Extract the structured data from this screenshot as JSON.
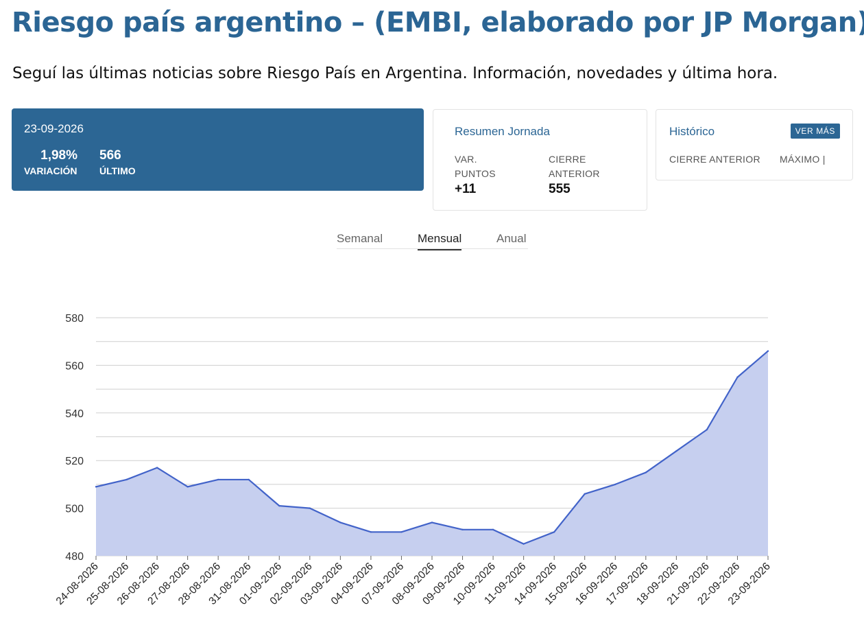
{
  "header": {
    "title": "Riesgo país argentino – (EMBI, elaborado por JP Morgan)",
    "subtitle": "Seguí las últimas noticias sobre Riesgo País en Argentina. Información, novedades y última hora."
  },
  "summary": {
    "date": "23-09-2026",
    "variation_value": "1,98%",
    "variation_label": "VARIACIÓN",
    "last_value": "566",
    "last_label": "ÚLTIMO"
  },
  "resumen": {
    "title": "Resumen Jornada",
    "var_label_1": "VAR.",
    "var_label_2": "PUNTOS",
    "var_value": "+11",
    "cierre_label_1": "CIERRE",
    "cierre_label_2": "ANTERIOR",
    "cierre_value": "555"
  },
  "historico": {
    "title": "Histórico",
    "button_label": "VER MÁS",
    "col1_label": "CIERRE ANTERIOR",
    "col2_label": "MÁXIMO |"
  },
  "tabs": [
    {
      "label": "Semanal",
      "active": false
    },
    {
      "label": "Mensual",
      "active": true
    },
    {
      "label": "Anual",
      "active": false
    }
  ],
  "colors": {
    "brand": "#2c6694",
    "line": "#4263c9",
    "area": "#c6cfef",
    "grid": "#cfcfcf"
  },
  "chart_data": {
    "type": "area",
    "x": [
      "24-08-2026",
      "25-08-2026",
      "26-08-2026",
      "27-08-2026",
      "28-08-2026",
      "31-08-2026",
      "01-09-2026",
      "02-09-2026",
      "03-09-2026",
      "04-09-2026",
      "07-09-2026",
      "08-09-2026",
      "09-09-2026",
      "10-09-2026",
      "11-09-2026",
      "14-09-2026",
      "15-09-2026",
      "16-09-2026",
      "17-09-2026",
      "18-09-2026",
      "21-09-2026",
      "22-09-2026",
      "23-09-2026"
    ],
    "values": [
      509,
      512,
      517,
      509,
      512,
      512,
      501,
      500,
      494,
      490,
      490,
      494,
      491,
      491,
      485,
      490,
      506,
      510,
      515,
      524,
      533,
      555,
      566
    ],
    "ylim": [
      480,
      580
    ],
    "yticks": [
      480,
      500,
      520,
      540,
      560,
      580
    ],
    "ytick_labels": [
      "480",
      "500",
      "520",
      "540",
      "560",
      "580"
    ],
    "grid": true,
    "legend": "none"
  }
}
